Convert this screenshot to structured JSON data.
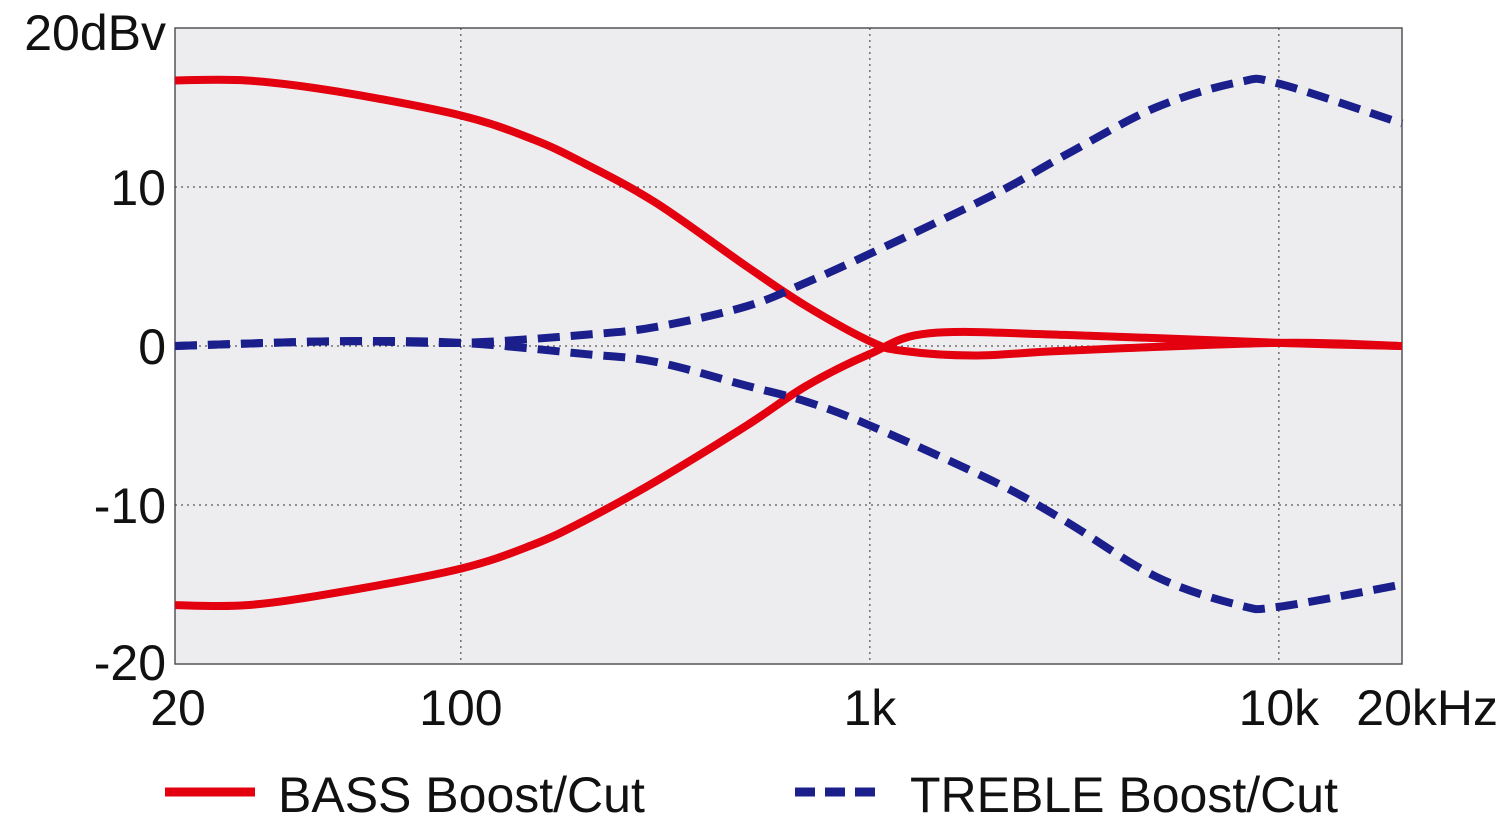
{
  "chart_data": {
    "type": "line",
    "title": "",
    "xlabel": "",
    "ylabel": "",
    "x_scale": "log",
    "xlim": [
      20,
      20000
    ],
    "ylim": [
      -20,
      20
    ],
    "grid": true,
    "legend_placement": "bottom",
    "x_ticks": [
      {
        "value": 20,
        "label": "20"
      },
      {
        "value": 100,
        "label": "100"
      },
      {
        "value": 1000,
        "label": "1k"
      },
      {
        "value": 10000,
        "label": "10k"
      },
      {
        "value": 20000,
        "label": "20kHz"
      }
    ],
    "y_ticks": [
      {
        "value": 20,
        "label": "20dBv"
      },
      {
        "value": 10,
        "label": "10"
      },
      {
        "value": 0,
        "label": "0"
      },
      {
        "value": -10,
        "label": "-10"
      },
      {
        "value": -20,
        "label": "-20"
      }
    ],
    "legend": [
      {
        "label": "BASS Boost/Cut",
        "color": "#e3000f",
        "style": "solid"
      },
      {
        "label": "TREBLE Boost/Cut",
        "color": "#1a1f8c",
        "style": "dashed"
      }
    ],
    "series": [
      {
        "group": "BASS Boost/Cut",
        "color": "#e3000f",
        "style": "solid",
        "x": [
          20,
          30,
          50,
          100,
          150,
          200,
          300,
          500,
          700,
          1000,
          1200,
          1800,
          3000,
          10000,
          20000
        ],
        "y": [
          16.7,
          16.7,
          16.0,
          14.5,
          13.0,
          11.5,
          9.0,
          5.0,
          2.5,
          0.3,
          -0.3,
          -0.6,
          -0.3,
          0.2,
          0
        ]
      },
      {
        "group": "BASS Boost/Cut",
        "color": "#e3000f",
        "style": "solid",
        "x": [
          20,
          30,
          50,
          100,
          150,
          200,
          300,
          500,
          700,
          1000,
          1400,
          3000,
          10000,
          20000
        ],
        "y": [
          -16.3,
          -16.3,
          -15.5,
          -14.0,
          -12.5,
          -11.0,
          -8.5,
          -5.0,
          -2.5,
          -0.5,
          0.8,
          0.7,
          0.2,
          0
        ]
      },
      {
        "group": "TREBLE Boost/Cut",
        "color": "#1a1f8c",
        "style": "dashed",
        "x": [
          20,
          50,
          100,
          200,
          300,
          500,
          700,
          1000,
          2000,
          3000,
          5000,
          8000,
          10000,
          20000
        ],
        "y": [
          0,
          0.3,
          0.2,
          0.7,
          1.2,
          2.5,
          4.0,
          5.8,
          9.5,
          12.0,
          15.0,
          16.6,
          16.5,
          14.0
        ]
      },
      {
        "group": "TREBLE Boost/Cut",
        "color": "#1a1f8c",
        "style": "dashed",
        "x": [
          20,
          50,
          100,
          200,
          300,
          500,
          700,
          1000,
          2000,
          3000,
          5000,
          8000,
          10000,
          20000
        ],
        "y": [
          0,
          0.3,
          0.2,
          -0.5,
          -1.0,
          -2.5,
          -3.5,
          -5.0,
          -8.5,
          -11.0,
          -14.5,
          -16.3,
          -16.4,
          -15.0
        ]
      }
    ]
  }
}
